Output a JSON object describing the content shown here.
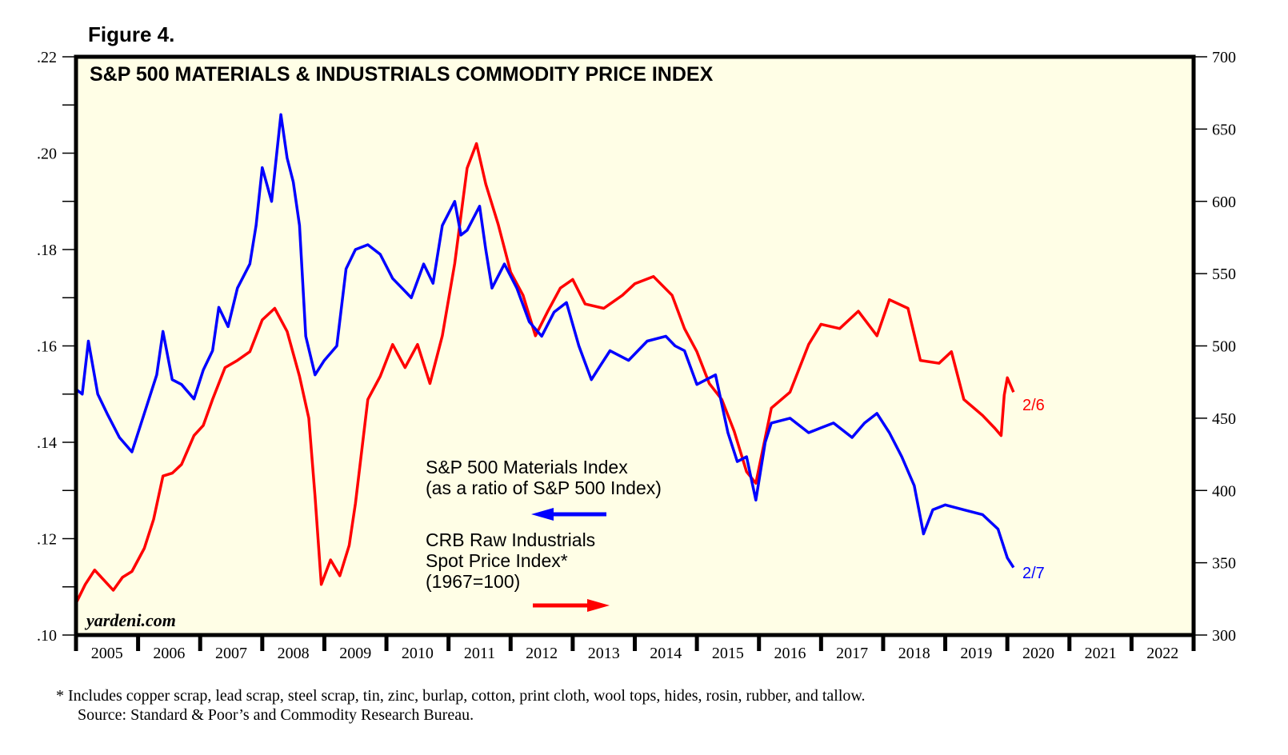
{
  "figure_label": "Figure 4.",
  "footnote": "*   Includes copper scrap, lead scrap, steel scrap, tin, zinc, burlap, cotton, print cloth, wool tops, hides, rosin, rubber, and tallow.",
  "source": "Source: Standard & Poor’s and Commodity Research Bureau.",
  "watermark": "yardeni.com",
  "colors": {
    "background": "#ffffff",
    "plot_bg": "#fffee6",
    "materials": "#0000ff",
    "crb": "#ff0000",
    "axis": "#000000"
  },
  "chart_data": {
    "type": "line",
    "title": "S&P 500 MATERIALS & INDUSTRIALS COMMODITY PRICE INDEX",
    "xlabel": "",
    "x_range": [
      2005,
      2023
    ],
    "x_tick_labels": [
      "2005",
      "2006",
      "2007",
      "2008",
      "2009",
      "2010",
      "2011",
      "2012",
      "2013",
      "2014",
      "2015",
      "2016",
      "2017",
      "2018",
      "2019",
      "2020",
      "2021",
      "2022"
    ],
    "y_left": {
      "range": [
        0.1,
        0.22
      ],
      "ticks": [
        0.1,
        0.12,
        0.14,
        0.16,
        0.18,
        0.2,
        0.22
      ],
      "tick_labels": [
        ".10",
        ".12",
        ".14",
        ".16",
        ".18",
        ".20",
        ".22"
      ],
      "minor_step": 0.01
    },
    "y_right": {
      "range": [
        300,
        700
      ],
      "ticks": [
        300,
        350,
        400,
        450,
        500,
        550,
        600,
        650,
        700
      ],
      "tick_labels": [
        "300",
        "350",
        "400",
        "450",
        "500",
        "550",
        "600",
        "650",
        "700"
      ]
    },
    "grid": false,
    "series": [
      {
        "name": "S&P 500 Materials Index (as a ratio of S&P 500 Index)",
        "axis": "left",
        "legend_lines": [
          "S&P 500 Materials Index",
          "(as a ratio of S&P 500 Index)"
        ],
        "end_label": "2/7",
        "x": [
          2005.0,
          2005.1,
          2005.2,
          2005.35,
          2005.5,
          2005.7,
          2005.9,
          2006.1,
          2006.3,
          2006.4,
          2006.55,
          2006.7,
          2006.9,
          2007.05,
          2007.2,
          2007.3,
          2007.45,
          2007.6,
          2007.8,
          2007.9,
          2008.0,
          2008.15,
          2008.3,
          2008.4,
          2008.5,
          2008.6,
          2008.7,
          2008.85,
          2009.0,
          2009.2,
          2009.35,
          2009.5,
          2009.7,
          2009.9,
          2010.1,
          2010.25,
          2010.4,
          2010.6,
          2010.75,
          2010.9,
          2011.1,
          2011.2,
          2011.3,
          2011.5,
          2011.6,
          2011.7,
          2011.9,
          2012.1,
          2012.3,
          2012.5,
          2012.7,
          2012.9,
          2013.1,
          2013.3,
          2013.45,
          2013.6,
          2013.9,
          2014.2,
          2014.5,
          2014.65,
          2014.8,
          2015.0,
          2015.3,
          2015.5,
          2015.65,
          2015.8,
          2015.95,
          2016.1,
          2016.2,
          2016.5,
          2016.8,
          2017.0,
          2017.2,
          2017.5,
          2017.7,
          2017.9,
          2018.1,
          2018.3,
          2018.5,
          2018.65,
          2018.8,
          2019.0,
          2019.3,
          2019.6,
          2019.85,
          2020.0,
          2020.1
        ],
        "values": [
          0.151,
          0.15,
          0.161,
          0.15,
          0.146,
          0.141,
          0.138,
          0.146,
          0.154,
          0.163,
          0.153,
          0.152,
          0.149,
          0.155,
          0.159,
          0.168,
          0.164,
          0.172,
          0.177,
          0.185,
          0.197,
          0.19,
          0.208,
          0.199,
          0.194,
          0.185,
          0.162,
          0.154,
          0.157,
          0.16,
          0.176,
          0.18,
          0.181,
          0.179,
          0.174,
          0.172,
          0.17,
          0.177,
          0.173,
          0.185,
          0.19,
          0.183,
          0.184,
          0.189,
          0.18,
          0.172,
          0.177,
          0.172,
          0.165,
          0.162,
          0.167,
          0.169,
          0.16,
          0.153,
          0.156,
          0.159,
          0.157,
          0.161,
          0.162,
          0.16,
          0.159,
          0.152,
          0.154,
          0.142,
          0.136,
          0.137,
          0.128,
          0.14,
          0.144,
          0.145,
          0.142,
          0.143,
          0.144,
          0.141,
          0.144,
          0.146,
          0.142,
          0.137,
          0.131,
          0.121,
          0.126,
          0.127,
          0.126,
          0.125,
          0.122,
          0.116,
          0.114
        ]
      },
      {
        "name": "CRB Raw Industrials Spot Price Index* (1967=100)",
        "axis": "right",
        "legend_lines": [
          "CRB Raw Industrials",
          "Spot Price Index*",
          "(1967=100)"
        ],
        "end_label": "2/6",
        "x": [
          2005.0,
          2005.15,
          2005.3,
          2005.45,
          2005.6,
          2005.75,
          2005.9,
          2006.1,
          2006.25,
          2006.4,
          2006.55,
          2006.7,
          2006.9,
          2007.05,
          2007.2,
          2007.4,
          2007.6,
          2007.8,
          2008.0,
          2008.2,
          2008.4,
          2008.6,
          2008.75,
          2008.85,
          2008.95,
          2009.1,
          2009.25,
          2009.4,
          2009.5,
          2009.7,
          2009.9,
          2010.1,
          2010.3,
          2010.5,
          2010.7,
          2010.9,
          2011.1,
          2011.3,
          2011.45,
          2011.6,
          2011.8,
          2012.0,
          2012.2,
          2012.4,
          2012.6,
          2012.8,
          2013.0,
          2013.2,
          2013.5,
          2013.8,
          2014.0,
          2014.3,
          2014.6,
          2014.8,
          2015.0,
          2015.2,
          2015.4,
          2015.6,
          2015.8,
          2015.95,
          2016.2,
          2016.5,
          2016.8,
          2017.0,
          2017.3,
          2017.6,
          2017.9,
          2018.1,
          2018.4,
          2018.6,
          2018.9,
          2019.1,
          2019.3,
          2019.6,
          2019.8,
          2019.9,
          2019.95,
          2020.0,
          2020.1
        ],
        "values": [
          322,
          335,
          345,
          338,
          331,
          340,
          344,
          360,
          380,
          410,
          412,
          418,
          438,
          445,
          463,
          485,
          490,
          496,
          518,
          526,
          510,
          479,
          450,
          396,
          335,
          352,
          341,
          362,
          391,
          463,
          479,
          501,
          485,
          501,
          474,
          507,
          557,
          623,
          640,
          612,
          584,
          551,
          535,
          507,
          524,
          540,
          546,
          529,
          526,
          535,
          543,
          548,
          535,
          512,
          496,
          474,
          463,
          441,
          413,
          405,
          457,
          468,
          501,
          515,
          512,
          524,
          507,
          532,
          526,
          490,
          488,
          496,
          463,
          452,
          443,
          438,
          466,
          478,
          468
        ]
      }
    ]
  }
}
